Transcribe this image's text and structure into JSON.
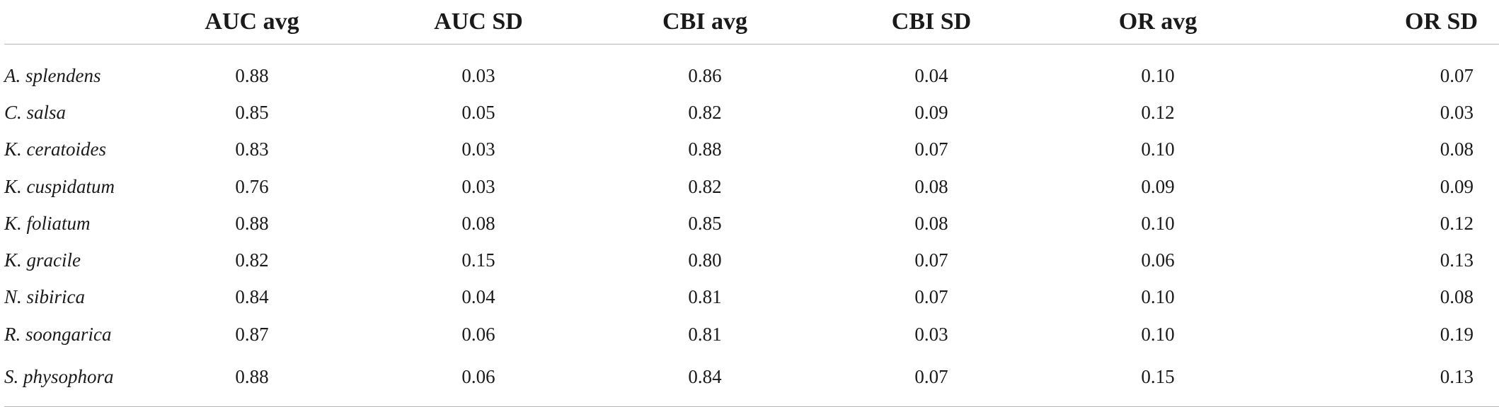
{
  "table": {
    "headers": [
      "",
      "AUC avg",
      "AUC SD",
      "CBI avg",
      "CBI SD",
      "OR avg",
      "OR SD"
    ],
    "rows": [
      {
        "species": "A. splendens",
        "values": [
          "0.88",
          "0.03",
          "0.86",
          "0.04",
          "0.10",
          "0.07"
        ]
      },
      {
        "species": "C. salsa",
        "values": [
          "0.85",
          "0.05",
          "0.82",
          "0.09",
          "0.12",
          "0.03"
        ]
      },
      {
        "species": "K. ceratoides",
        "values": [
          "0.83",
          "0.03",
          "0.88",
          "0.07",
          "0.10",
          "0.08"
        ]
      },
      {
        "species": "K. cuspidatum",
        "values": [
          "0.76",
          "0.03",
          "0.82",
          "0.08",
          "0.09",
          "0.09"
        ]
      },
      {
        "species": "K. foliatum",
        "values": [
          "0.88",
          "0.08",
          "0.85",
          "0.08",
          "0.10",
          "0.12"
        ]
      },
      {
        "species": "K. gracile",
        "values": [
          "0.82",
          "0.15",
          "0.80",
          "0.07",
          "0.06",
          "0.13"
        ]
      },
      {
        "species": "N. sibirica",
        "values": [
          "0.84",
          "0.04",
          "0.81",
          "0.07",
          "0.10",
          "0.08"
        ]
      },
      {
        "species": "R. soongarica",
        "values": [
          "0.87",
          "0.06",
          "0.81",
          "0.03",
          "0.10",
          "0.19"
        ]
      },
      {
        "species": "S. physophora",
        "values": [
          "0.88",
          "0.06",
          "0.84",
          "0.07",
          "0.15",
          "0.13"
        ]
      }
    ]
  }
}
